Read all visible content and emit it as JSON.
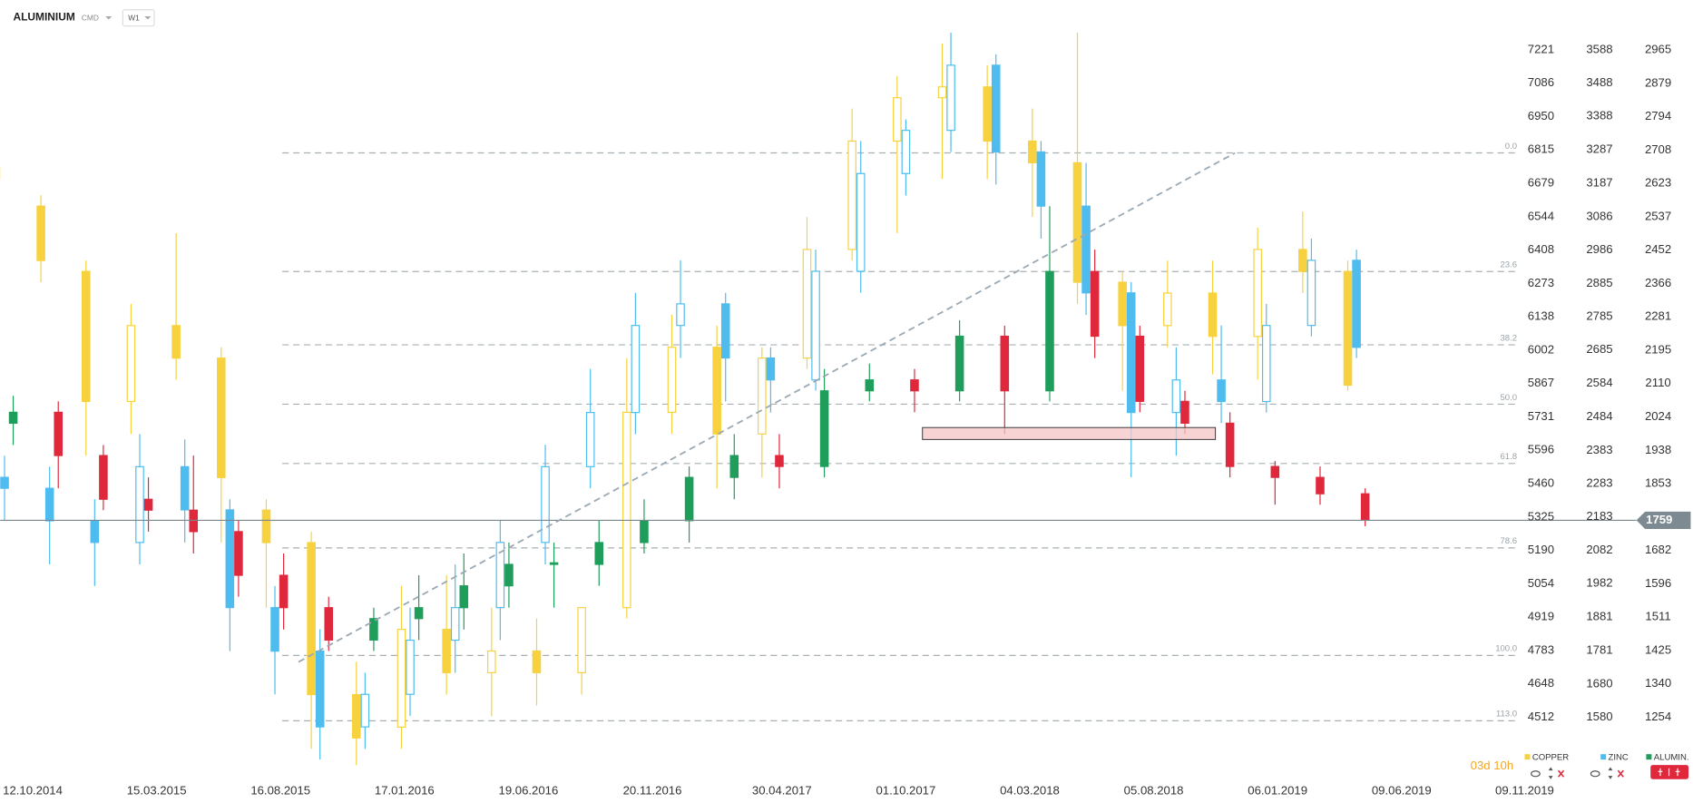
{
  "chart_data": {
    "type": "candlestick",
    "title": "ALUMINIUM",
    "market": "CMD",
    "interval": "W1",
    "countdown": "03d 10h",
    "x": [
      "07.09.2014",
      "02.11.2014",
      "28.12.2014",
      "22.02.2015",
      "19.04.2015",
      "14.06.2015",
      "09.08.2015",
      "04.10.2015",
      "29.11.2015",
      "24.01.2016",
      "20.03.2016",
      "15.05.2016",
      "10.07.2016",
      "04.09.2016",
      "30.10.2016",
      "25.12.2016",
      "19.02.2017",
      "16.04.2017",
      "11.06.2017",
      "06.08.2017",
      "01.10.2017",
      "26.11.2017",
      "21.01.2018",
      "18.03.2018",
      "13.05.2018",
      "08.07.2018",
      "02.09.2018",
      "28.10.2018",
      "23.12.2018",
      "17.02.2019",
      "14.04.2019"
    ],
    "xlim": [
      "12.10.2014",
      "09.11.2019"
    ],
    "xticks": [
      "12.10.2014",
      "15.03.2015",
      "16.08.2015",
      "17.01.2016",
      "19.06.2016",
      "20.11.2016",
      "30.04.2017",
      "01.10.2017",
      "04.03.2018",
      "05.08.2018",
      "06.01.2019",
      "09.06.2019",
      "09.11.2019"
    ],
    "ylim": [
      4512,
      7221
    ],
    "yticks": [
      7221,
      7086,
      6950,
      6815,
      6679,
      6544,
      6408,
      6273,
      6138,
      6002,
      5867,
      5731,
      5596,
      5460,
      5325,
      5190,
      5054,
      4919,
      4783,
      4648,
      4512
    ],
    "y2lim": [
      1580,
      3588
    ],
    "y2ticks": [
      3588,
      3488,
      3388,
      3287,
      3187,
      3086,
      2986,
      2885,
      2785,
      2685,
      2584,
      2484,
      2383,
      2283,
      2183,
      2082,
      1982,
      1881,
      1781,
      1680,
      1580
    ],
    "y3lim": [
      1254,
      2965
    ],
    "y3ticks": [
      2965,
      2879,
      2794,
      2708,
      2623,
      2537,
      2452,
      2366,
      2281,
      2195,
      2110,
      2024,
      1938,
      1853,
      1682,
      1596,
      1511,
      1425,
      1340,
      1254
    ],
    "series": [
      {
        "name": "COPPER",
        "color": "#f7d23e",
        "axis": "y",
        "open": [
          6741,
          6587,
          6322,
          5794,
          6102,
          5970,
          5353,
          5221,
          4604,
          4472,
          4869,
          4693,
          4781,
          4693,
          4957,
          5750,
          6014,
          5662,
          5970,
          6411,
          6851,
          7027,
          7071,
          6851,
          6763,
          6278,
          6102,
          6234,
          6058,
          6411,
          6322
        ],
        "high": [
          6851,
          6631,
          6366,
          6190,
          6477,
          6014,
          5397,
          5265,
          4737,
          5045,
          5089,
          4957,
          4913,
          4957,
          5970,
          6146,
          6102,
          6014,
          6543,
          6983,
          7115,
          7247,
          7159,
          6983,
          7291,
          6322,
          6366,
          6366,
          6499,
          6565,
          6366
        ],
        "low": [
          6565,
          6278,
          5574,
          5662,
          5882,
          5221,
          4957,
          4384,
          4318,
          4384,
          4604,
          4516,
          4560,
          4604,
          4913,
          5662,
          5441,
          5485,
          5926,
          6366,
          6477,
          6697,
          6697,
          6543,
          6190,
          5838,
          6014,
          5904,
          5882,
          6234,
          5838
        ],
        "close": [
          6697,
          6366,
          5794,
          6102,
          5970,
          5485,
          5221,
          4604,
          4428,
          4869,
          4693,
          4781,
          4693,
          4957,
          5750,
          6014,
          5662,
          5970,
          6411,
          6851,
          7027,
          7071,
          6851,
          6763,
          6278,
          6102,
          6234,
          6058,
          6411,
          6322,
          5860
        ]
      },
      {
        "name": "ZINC",
        "color": "#4ebcef",
        "axis": "y2",
        "open": [
          2302,
          2269,
          2171,
          2106,
          2334,
          2204,
          1910,
          1779,
          1551,
          1649,
          1812,
          1910,
          2106,
          2334,
          2497,
          2759,
          2824,
          2661,
          2595,
          2922,
          3216,
          3346,
          3542,
          3281,
          3118,
          2857,
          2497,
          2595,
          2530,
          2759,
          2955
        ],
        "high": [
          2367,
          2334,
          2236,
          2432,
          2416,
          2236,
          1975,
          1845,
          1714,
          1910,
          2040,
          2171,
          2400,
          2628,
          2857,
          2955,
          2857,
          2693,
          2987,
          3314,
          3379,
          3640,
          3575,
          3314,
          3248,
          2889,
          2693,
          2759,
          2824,
          3020,
          2987
        ],
        "low": [
          2171,
          2040,
          1975,
          2040,
          2106,
          1779,
          1649,
          1453,
          1485,
          1584,
          1714,
          1812,
          2040,
          2269,
          2432,
          2661,
          2530,
          2497,
          2563,
          2857,
          3150,
          3281,
          3183,
          3020,
          2791,
          2302,
          2367,
          2465,
          2497,
          2726,
          2661
        ],
        "close": [
          2269,
          2171,
          2106,
          2334,
          2204,
          1910,
          1779,
          1551,
          1649,
          1812,
          1910,
          2106,
          2334,
          2497,
          2759,
          2824,
          2661,
          2595,
          2922,
          3216,
          3346,
          3542,
          3281,
          3118,
          2857,
          2497,
          2595,
          2530,
          2759,
          2955,
          2693
        ]
      },
      {
        "name": "ALUMIN.",
        "color": "#1e9e5a",
        "up_color": "#1e9e5a",
        "down_color": "#e0283c",
        "axis": "y3",
        "last_price": 1759,
        "open": [
          2008,
          2036,
          1925,
          1813,
          1785,
          1730,
          1618,
          1535,
          1452,
          1507,
          1535,
          1591,
          1646,
          1646,
          1702,
          1758,
          1869,
          1925,
          1897,
          2091,
          2119,
          2091,
          2231,
          2091,
          2397,
          2231,
          2064,
          2008,
          1897,
          1869,
          1827
        ],
        "high": [
          2078,
          2064,
          1952,
          1869,
          1925,
          1758,
          1674,
          1563,
          1535,
          1618,
          1674,
          1702,
          1702,
          1758,
          1813,
          1897,
          1980,
          1980,
          2147,
          2161,
          2147,
          2272,
          2258,
          2564,
          2453,
          2258,
          2091,
          2036,
          1911,
          1897,
          1841
        ],
        "low": [
          1952,
          1841,
          1785,
          1730,
          1674,
          1563,
          1479,
          1424,
          1424,
          1452,
          1479,
          1535,
          1535,
          1591,
          1674,
          1702,
          1813,
          1841,
          1869,
          2064,
          2036,
          2064,
          1980,
          2064,
          2175,
          2036,
          1980,
          1869,
          1799,
          1799,
          1744
        ],
        "close": [
          2036,
          1925,
          1813,
          1785,
          1730,
          1618,
          1535,
          1452,
          1507,
          1535,
          1591,
          1646,
          1650,
          1702,
          1758,
          1869,
          1925,
          1897,
          2091,
          2119,
          2091,
          2231,
          2091,
          2397,
          2231,
          2064,
          2008,
          1897,
          1869,
          1827,
          1760
        ]
      }
    ],
    "fib": {
      "high": 6803,
      "low": 4763,
      "levels": [
        {
          "value": 0,
          "label": "0.0"
        },
        23.6,
        38.2,
        {
          "value": 50,
          "label": "50.0"
        },
        61.8,
        78.6,
        {
          "value": 100,
          "label": "100.0"
        },
        {
          "value": 113,
          "label": "113.0"
        }
      ]
    }
  }
}
